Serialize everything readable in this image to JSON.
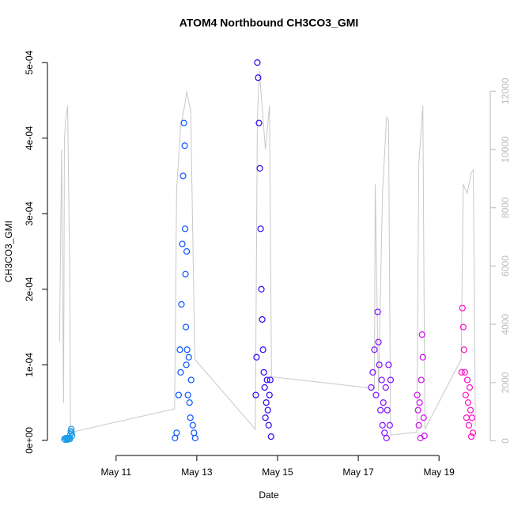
{
  "chart_data": {
    "type": "scatter",
    "title": "ATOM4 Northbound CH3CO3_GMI",
    "x_label": "Date",
    "y_label": "CH3CO3_GMI",
    "xlim": [
      9.3,
      20.27
    ],
    "xticks": [
      {
        "value": 11,
        "label": "May 11"
      },
      {
        "value": 13,
        "label": "May 13"
      },
      {
        "value": 15,
        "label": "May 15"
      },
      {
        "value": 17,
        "label": "May 17"
      },
      {
        "value": 19,
        "label": "May 19"
      }
    ],
    "ylim": [
      -2e-05,
      0.00052
    ],
    "yticks": [
      {
        "value": 0,
        "label": "0e+00"
      },
      {
        "value": 0.0001,
        "label": "1e-04"
      },
      {
        "value": 0.0002,
        "label": "2e-04"
      },
      {
        "value": 0.0003,
        "label": "3e-04"
      },
      {
        "value": 0.0004,
        "label": "4e-04"
      },
      {
        "value": 0.0005,
        "label": "5e-04"
      }
    ],
    "y2lim": [
      -500,
      13500
    ],
    "y2ticks": [
      0,
      2000,
      4000,
      6000,
      8000,
      10000,
      12000
    ],
    "series": [
      {
        "color": "#1a9be8",
        "x": [
          9.72,
          9.74,
          9.76,
          9.78,
          9.8,
          9.82,
          9.84,
          9.86,
          9.87,
          9.88,
          9.89,
          9.9,
          9.91
        ],
        "values": [
          2e-06,
          1e-06,
          3e-06,
          2e-06,
          1e-06,
          2e-06,
          3e-06,
          2e-06,
          8e-06,
          1.2e-05,
          1.5e-05,
          1e-05,
          6e-06
        ]
      },
      {
        "color": "#0a55ff",
        "x": [
          12.46,
          12.5,
          12.55,
          12.58,
          12.6,
          12.62,
          12.64,
          12.66,
          12.68,
          12.7,
          12.71,
          12.72,
          12.73,
          12.74,
          12.75,
          12.76,
          12.78,
          12.8,
          12.82,
          12.84,
          12.86,
          12.9,
          12.93,
          12.96
        ],
        "values": [
          3e-06,
          1e-05,
          6e-05,
          0.00012,
          9e-05,
          0.00018,
          0.00026,
          0.00035,
          0.00042,
          0.00039,
          0.00028,
          0.00022,
          0.00015,
          0.0001,
          0.00025,
          0.00012,
          6e-05,
          0.00011,
          5e-05,
          3e-05,
          8e-05,
          2e-05,
          1e-05,
          3e-06
        ]
      },
      {
        "color": "#2a08f0",
        "x": [
          14.46,
          14.48,
          14.5,
          14.52,
          14.54,
          14.56,
          14.58,
          14.6,
          14.62,
          14.64,
          14.66,
          14.68,
          14.7,
          14.72,
          14.74,
          14.76,
          14.78,
          14.8,
          14.82,
          14.84
        ],
        "values": [
          6e-05,
          0.00011,
          0.0005,
          0.00048,
          0.00042,
          0.00036,
          0.00028,
          0.0002,
          0.00016,
          0.00012,
          9e-05,
          7e-05,
          3e-05,
          5e-05,
          8e-05,
          4e-05,
          2e-05,
          6e-05,
          8e-05,
          5e-06
        ]
      },
      {
        "color": "#8010ff",
        "x": [
          17.32,
          17.36,
          17.4,
          17.44,
          17.48,
          17.5,
          17.52,
          17.55,
          17.58,
          17.6,
          17.62,
          17.65,
          17.68,
          17.7,
          17.72,
          17.75,
          17.78,
          17.8
        ],
        "values": [
          7e-05,
          9e-05,
          0.00012,
          6e-05,
          0.00017,
          0.00013,
          0.0001,
          4e-05,
          8e-05,
          2e-05,
          5e-05,
          1e-05,
          7e-05,
          3e-06,
          4e-05,
          0.0001,
          2e-05,
          8e-05
        ]
      },
      {
        "color": "#d010f0",
        "x": [
          18.46,
          18.48,
          18.5,
          18.52,
          18.54,
          18.56,
          18.58,
          18.6,
          18.62,
          18.64
        ],
        "values": [
          6e-05,
          4e-05,
          2e-05,
          5e-05,
          3e-06,
          8e-05,
          0.00014,
          0.00011,
          3e-05,
          6e-06
        ]
      },
      {
        "color": "#ff10c8",
        "x": [
          19.56,
          19.58,
          19.6,
          19.62,
          19.64,
          19.66,
          19.68,
          19.7,
          19.72,
          19.74,
          19.76,
          19.78,
          19.8,
          19.82,
          19.84
        ],
        "values": [
          9e-05,
          0.000175,
          0.00015,
          0.00012,
          9e-05,
          6e-05,
          3e-05,
          8e-05,
          5e-05,
          2e-05,
          7e-05,
          4e-05,
          5e-06,
          3e-05,
          1e-05
        ]
      },
      {
        "color": "#c8c8c8",
        "axis": "y2",
        "x": [
          9.6,
          9.65,
          9.7,
          9.72,
          9.75,
          9.8,
          9.85,
          9.87,
          9.88,
          9.9,
          12.45,
          12.5,
          12.55,
          12.6,
          12.7,
          12.75,
          12.85,
          12.95,
          14.45,
          14.5,
          14.55,
          14.7,
          14.8,
          14.85,
          17.4,
          17.42,
          17.5,
          17.6,
          17.7,
          17.75,
          17.8,
          18.45,
          18.5,
          18.6,
          18.65,
          19.55,
          19.6,
          19.7,
          19.8,
          19.85,
          19.9
        ],
        "values": [
          3400,
          10000,
          1300,
          10300,
          11000,
          11500,
          5900,
          300,
          200,
          300,
          1100,
          8600,
          9700,
          10800,
          11500,
          12000,
          11300,
          2800,
          400,
          11000,
          12700,
          10000,
          11500,
          2200,
          1800,
          8800,
          1700,
          8500,
          11100,
          11000,
          200,
          300,
          9500,
          11500,
          400,
          2800,
          8800,
          8500,
          9200,
          9300,
          500
        ]
      }
    ]
  }
}
